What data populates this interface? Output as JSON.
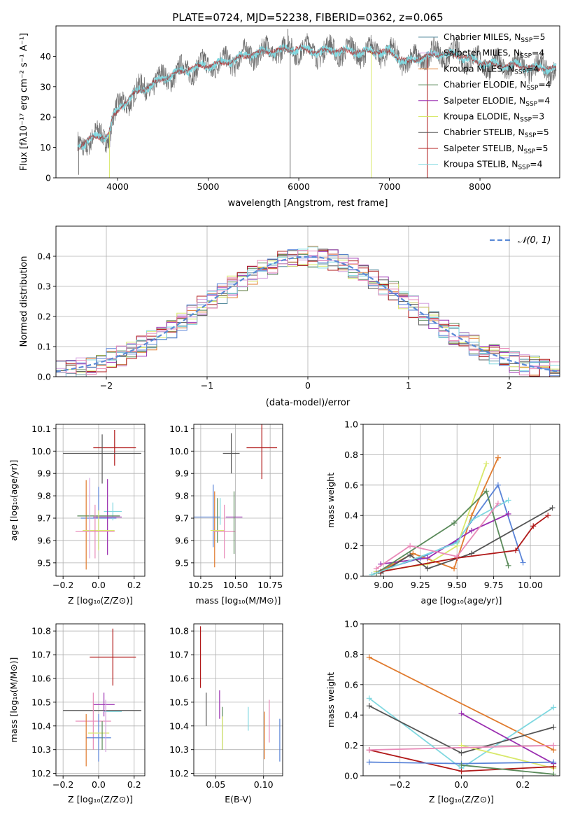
{
  "figure_title": "PLATE=0724, MJD=52238, FIBERID=0362, z=0.065",
  "colors": {
    "chabrier_miles": "#5b8fa0",
    "salpeter_miles": "#d6a3df",
    "kroupa_miles": "#e07b2e",
    "chabrier_elodie": "#5a8a5a",
    "salpeter_elodie": "#9a2eb0",
    "kroupa_elodie": "#d8e86a",
    "chabrier_stelib": "#555555",
    "salpeter_stelib": "#b01818",
    "kroupa_stelib": "#80d8e0",
    "blue_extra": "#5a84d8",
    "pink_extra": "#e88ab8",
    "normal_curve": "#5a8ad6",
    "grid": "#b0b0b0"
  },
  "chart_data": [
    {
      "id": "spectrum",
      "type": "line",
      "title": "PLATE=0724, MJD=52238, FIBERID=0362, z=0.065",
      "xlabel": "wavelength [Angstrom, rest frame]",
      "ylabel": "Flux [fλ10⁻¹⁷ erg cm⁻² s⁻¹ A⁻¹]",
      "xlim": [
        3320,
        8880
      ],
      "ylim": [
        0,
        50
      ],
      "xticks": [
        4000,
        5000,
        6000,
        7000,
        8000
      ],
      "yticks": [
        0,
        10,
        20,
        30,
        40
      ],
      "grid": false,
      "legend_position": "top-right",
      "continuum": [
        [
          3560,
          10
        ],
        [
          3700,
          13
        ],
        [
          3900,
          14
        ],
        [
          3950,
          20
        ],
        [
          4050,
          24
        ],
        [
          4200,
          28
        ],
        [
          4400,
          31
        ],
        [
          4600,
          34
        ],
        [
          4800,
          36
        ],
        [
          5000,
          37
        ],
        [
          5200,
          38
        ],
        [
          5400,
          40
        ],
        [
          5600,
          41.5
        ],
        [
          5800,
          42
        ],
        [
          6000,
          42.5
        ],
        [
          6200,
          41.5
        ],
        [
          6400,
          42
        ],
        [
          6600,
          41.5
        ],
        [
          6800,
          41.5
        ],
        [
          7000,
          41.5
        ],
        [
          7200,
          38
        ],
        [
          7400,
          40
        ],
        [
          7600,
          41
        ],
        [
          7800,
          40
        ],
        [
          8000,
          38
        ],
        [
          8200,
          37
        ],
        [
          8400,
          37
        ],
        [
          8600,
          36
        ],
        [
          8840,
          36
        ]
      ],
      "spikes": [
        {
          "x": 3570,
          "y": 1
        },
        {
          "x": 3910,
          "y": 0
        },
        {
          "x": 5880,
          "y": 49
        },
        {
          "x": 5905,
          "y": 0
        },
        {
          "x": 6800,
          "y": 0
        },
        {
          "x": 7420,
          "y": 0
        }
      ],
      "legend": [
        "Chabrier MILES, N_SSP=5",
        "Salpeter MILES, N_SSP=4",
        "Kroupa MILES, N_SSP=4",
        "Chabrier ELODIE, N_SSP=4",
        "Salpeter ELODIE, N_SSP=4",
        "Kroupa ELODIE, N_SSP=3",
        "Chabrier STELIB, N_SSP=5",
        "Salpeter STELIB, N_SSP=5",
        "Kroupa STELIB, N_SSP=4"
      ]
    },
    {
      "id": "residual-histogram",
      "type": "bar",
      "xlabel": "(data-model)/error",
      "ylabel": "Normed distribution",
      "xlim": [
        -2.5,
        2.5
      ],
      "ylim": [
        0,
        0.5
      ],
      "xticks": [
        -2,
        -1,
        0,
        1,
        2
      ],
      "yticks": [
        0.0,
        0.1,
        0.2,
        0.3,
        0.4
      ],
      "grid": true,
      "bin_width": 0.1,
      "legend_position": "top-right",
      "legend": [
        "𝒩(0, 1)"
      ],
      "normal": {
        "mean": 0,
        "sigma": 1
      }
    },
    {
      "id": "z-vs-age",
      "type": "scatter",
      "xlabel": "Z [log₁₀(Z/Z⊙)]",
      "ylabel": "age  [log₁₀(age/yr)]",
      "xlim": [
        -0.24,
        0.26
      ],
      "ylim": [
        9.44,
        10.12
      ],
      "xticks": [
        -0.2,
        0.0,
        0.2
      ],
      "yticks": [
        9.5,
        9.6,
        9.7,
        9.8,
        9.9,
        10.0,
        10.1
      ],
      "grid": true,
      "points": [
        {
          "color": "#b01818",
          "x": 0.09,
          "xerr": 0.12,
          "y": 10.015,
          "yerr": 0.08
        },
        {
          "color": "#555555",
          "x": 0.02,
          "xerr": 0.22,
          "y": 9.99,
          "yerr": 0.0
        },
        {
          "color": "#555555",
          "x": 0.02,
          "xerr": 0.0,
          "y": 9.965,
          "yerr": 0.11
        },
        {
          "color": "#5a84d8",
          "x": 0.0,
          "xerr": 0.1,
          "y": 9.7,
          "yerr": 0.14
        },
        {
          "color": "#80d8e0",
          "x": 0.08,
          "xerr": 0.05,
          "y": 9.73,
          "yerr": 0.04
        },
        {
          "color": "#9a2eb0",
          "x": 0.05,
          "xerr": 0.08,
          "y": 9.705,
          "yerr": 0.17
        },
        {
          "color": "#e07b2e",
          "x": -0.07,
          "xerr": 0.0,
          "y": 9.67,
          "yerr": 0.2
        },
        {
          "color": "#5a8a5a",
          "x": 0.0,
          "xerr": 0.12,
          "y": 9.71,
          "yerr": 0.0
        },
        {
          "color": "#d8e86a",
          "x": 0.0,
          "xerr": 0.09,
          "y": 9.645,
          "yerr": 0.09
        },
        {
          "color": "#e88ab8",
          "x": -0.02,
          "xerr": 0.11,
          "y": 9.64,
          "yerr": 0.12
        },
        {
          "color": "#d6a3df",
          "x": -0.05,
          "xerr": 0.0,
          "y": 9.7,
          "yerr": 0.18
        }
      ]
    },
    {
      "id": "mass-vs-age",
      "type": "scatter",
      "xlabel": "mass [log₁₀(M/M⊙)]",
      "ylabel": "",
      "xlim": [
        10.2,
        10.84
      ],
      "ylim": [
        9.44,
        10.12
      ],
      "xticks": [
        10.25,
        10.5,
        10.75
      ],
      "yticks": [
        9.5,
        9.6,
        9.7,
        9.8,
        9.9,
        10.0,
        10.1
      ],
      "grid": true,
      "points": [
        {
          "color": "#b01818",
          "x": 10.69,
          "xerr": 0.11,
          "y": 10.015,
          "yerr": 0.14
        },
        {
          "color": "#555555",
          "x": 10.47,
          "xerr": 0.06,
          "y": 9.99,
          "yerr": 0.0
        },
        {
          "color": "#555555",
          "x": 10.47,
          "xerr": 0.0,
          "y": 9.99,
          "yerr": 0.09
        },
        {
          "color": "#5a84d8",
          "x": 10.34,
          "xerr": 0.0,
          "y": 9.71,
          "yerr": 0.14
        },
        {
          "color": "#80d8e0",
          "x": 10.39,
          "xerr": 0.0,
          "y": 9.73,
          "yerr": 0.06
        },
        {
          "color": "#9a2eb0",
          "x": 10.49,
          "xerr": 0.06,
          "y": 9.705,
          "yerr": 0.0
        },
        {
          "color": "#e07b2e",
          "x": 10.35,
          "xerr": 0.0,
          "y": 9.65,
          "yerr": 0.17
        },
        {
          "color": "#5a8a5a",
          "x": 10.37,
          "xerr": 0.0,
          "y": 9.69,
          "yerr": 0.1
        },
        {
          "color": "#d8e86a",
          "x": 10.37,
          "xerr": 0.05,
          "y": 9.645,
          "yerr": 0.0
        },
        {
          "color": "#e88ab8",
          "x": 10.42,
          "xerr": 0.08,
          "y": 9.64,
          "yerr": 0.12
        },
        {
          "color": "#5a84d8",
          "x": 10.28,
          "xerr": 0.11,
          "y": 9.705,
          "yerr": 0.0
        },
        {
          "color": "#5a8a5a",
          "x": 10.49,
          "xerr": 0.0,
          "y": 9.68,
          "yerr": 0.14
        }
      ]
    },
    {
      "id": "age-vs-weight",
      "type": "line",
      "xlabel": "age  [log₁₀(age/yr)]",
      "ylabel": "mass weight",
      "xlim": [
        8.86,
        10.2
      ],
      "ylim": [
        0,
        1
      ],
      "xticks": [
        9.0,
        9.25,
        9.5,
        9.75,
        10.0
      ],
      "yticks": [
        0.0,
        0.2,
        0.4,
        0.6,
        0.8,
        1.0
      ],
      "grid": true,
      "series": [
        {
          "color": "#5a84d8",
          "points": [
            [
              8.95,
              0.03
            ],
            [
              9.25,
              0.12
            ],
            [
              9.5,
              0.23
            ],
            [
              9.78,
              0.6
            ],
            [
              9.95,
              0.09
            ]
          ]
        },
        {
          "color": "#e07b2e",
          "points": [
            [
              8.95,
              0.02
            ],
            [
              9.2,
              0.15
            ],
            [
              9.48,
              0.05
            ],
            [
              9.6,
              0.4
            ],
            [
              9.78,
              0.78
            ]
          ]
        },
        {
          "color": "#d8e86a",
          "points": [
            [
              8.95,
              0.03
            ],
            [
              9.3,
              0.08
            ],
            [
              9.5,
              0.2
            ],
            [
              9.7,
              0.74
            ]
          ]
        },
        {
          "color": "#9a2eb0",
          "points": [
            [
              8.98,
              0.08
            ],
            [
              9.3,
              0.12
            ],
            [
              9.6,
              0.3
            ],
            [
              9.85,
              0.41
            ]
          ]
        },
        {
          "color": "#5a8a5a",
          "points": [
            [
              8.95,
              0.02
            ],
            [
              9.48,
              0.35
            ],
            [
              9.7,
              0.56
            ],
            [
              9.85,
              0.07
            ]
          ]
        },
        {
          "color": "#555555",
          "points": [
            [
              8.98,
              0.02
            ],
            [
              9.18,
              0.14
            ],
            [
              9.3,
              0.05
            ],
            [
              9.6,
              0.15
            ],
            [
              10.15,
              0.45
            ]
          ]
        },
        {
          "color": "#b01818",
          "points": [
            [
              8.98,
              0.03
            ],
            [
              9.5,
              0.12
            ],
            [
              9.9,
              0.17
            ],
            [
              10.02,
              0.33
            ],
            [
              10.12,
              0.4
            ]
          ]
        },
        {
          "color": "#80d8e0",
          "points": [
            [
              8.92,
              0.01
            ],
            [
              9.5,
              0.22
            ],
            [
              9.6,
              0.37
            ],
            [
              9.85,
              0.5
            ]
          ]
        },
        {
          "color": "#e88ab8",
          "points": [
            [
              8.95,
              0.05
            ],
            [
              9.18,
              0.2
            ],
            [
              9.5,
              0.13
            ],
            [
              9.78,
              0.48
            ]
          ]
        }
      ]
    },
    {
      "id": "z-vs-mass",
      "type": "scatter",
      "xlabel": "Z [log₁₀(Z/Z⊙)]",
      "ylabel": "mass [log₁₀(M/M⊙)]",
      "xlim": [
        -0.24,
        0.26
      ],
      "ylim": [
        10.19,
        10.83
      ],
      "xticks": [
        -0.2,
        0.0,
        0.2
      ],
      "yticks": [
        10.2,
        10.3,
        10.4,
        10.5,
        10.6,
        10.7,
        10.8
      ],
      "grid": true,
      "points": [
        {
          "color": "#b01818",
          "x": 0.08,
          "xerr": 0.13,
          "y": 10.69,
          "yerr": 0.12
        },
        {
          "color": "#555555",
          "x": 0.02,
          "xerr": 0.22,
          "y": 10.465,
          "yerr": 0.0
        },
        {
          "color": "#9a2eb0",
          "x": 0.03,
          "xerr": 0.06,
          "y": 10.49,
          "yerr": 0.05
        },
        {
          "color": "#80d8e0",
          "x": 0.08,
          "xerr": 0.05,
          "y": 10.46,
          "yerr": 0.0
        },
        {
          "color": "#e88ab8",
          "x": -0.03,
          "xerr": 0.1,
          "y": 10.42,
          "yerr": 0.12
        },
        {
          "color": "#5a84d8",
          "x": 0.0,
          "xerr": 0.07,
          "y": 10.35,
          "yerr": 0.1
        },
        {
          "color": "#e07b2e",
          "x": -0.07,
          "xerr": 0.0,
          "y": 10.34,
          "yerr": 0.11
        },
        {
          "color": "#d8e86a",
          "x": 0.0,
          "xerr": 0.06,
          "y": 10.37,
          "yerr": 0.0
        },
        {
          "color": "#5a8a5a",
          "x": 0.02,
          "xerr": 0.0,
          "y": 10.36,
          "yerr": 0.06
        },
        {
          "color": "#d6a3df",
          "x": 0.04,
          "xerr": 0.0,
          "y": 10.4,
          "yerr": 0.11
        }
      ]
    },
    {
      "id": "ebv-vs-mass",
      "type": "scatter",
      "xlabel": "E(B-V)",
      "ylabel": "",
      "xlim": [
        0.027,
        0.12
      ],
      "ylim": [
        10.19,
        10.83
      ],
      "xticks": [
        0.05,
        0.1
      ],
      "yticks": [
        10.2,
        10.3,
        10.4,
        10.5,
        10.6,
        10.7,
        10.8
      ],
      "grid": true,
      "points": [
        {
          "color": "#b01818",
          "x": 0.034,
          "xerr": 0.0,
          "y": 10.69,
          "yerr": 0.13
        },
        {
          "color": "#555555",
          "x": 0.04,
          "xerr": 0.0,
          "y": 10.47,
          "yerr": 0.07
        },
        {
          "color": "#9a2eb0",
          "x": 0.054,
          "xerr": 0.0,
          "y": 10.49,
          "yerr": 0.06
        },
        {
          "color": "#5a8a5a",
          "x": 0.057,
          "xerr": 0.0,
          "y": 10.39,
          "yerr": 0.09
        },
        {
          "color": "#d8e86a",
          "x": 0.057,
          "xerr": 0.0,
          "y": 10.37,
          "yerr": 0.07
        },
        {
          "color": "#80d8e0",
          "x": 0.084,
          "xerr": 0.0,
          "y": 10.43,
          "yerr": 0.05
        },
        {
          "color": "#e07b2e",
          "x": 0.101,
          "xerr": 0.0,
          "y": 10.36,
          "yerr": 0.1
        },
        {
          "color": "#e88ab8",
          "x": 0.106,
          "xerr": 0.0,
          "y": 10.42,
          "yerr": 0.09
        },
        {
          "color": "#5a84d8",
          "x": 0.117,
          "xerr": 0.0,
          "y": 10.34,
          "yerr": 0.09
        }
      ]
    },
    {
      "id": "z-vs-weight",
      "type": "line",
      "xlabel": "Z [log₁₀(Z/Z⊙)]",
      "ylabel": "mass weight",
      "xlim": [
        -0.32,
        0.32
      ],
      "ylim": [
        0,
        1
      ],
      "xticks": [
        -0.2,
        0.0,
        0.2
      ],
      "yticks": [
        0.0,
        0.2,
        0.4,
        0.6,
        0.8,
        1.0
      ],
      "grid": true,
      "series": [
        {
          "color": "#e07b2e",
          "points": [
            [
              -0.3,
              0.78
            ],
            [
              0.3,
              0.17
            ]
          ]
        },
        {
          "color": "#80d8e0",
          "points": [
            [
              -0.3,
              0.51
            ],
            [
              0.0,
              0.05
            ],
            [
              0.3,
              0.45
            ]
          ]
        },
        {
          "color": "#555555",
          "points": [
            [
              -0.3,
              0.46
            ],
            [
              0.0,
              0.15
            ],
            [
              0.3,
              0.32
            ]
          ]
        },
        {
          "color": "#9a2eb0",
          "points": [
            [
              0.0,
              0.41
            ],
            [
              0.3,
              0.08
            ]
          ]
        },
        {
          "color": "#d8e86a",
          "points": [
            [
              0.0,
              0.2
            ],
            [
              0.3,
              0.05
            ]
          ]
        },
        {
          "color": "#b01818",
          "points": [
            [
              -0.3,
              0.17
            ],
            [
              0.0,
              0.03
            ],
            [
              0.3,
              0.06
            ]
          ]
        },
        {
          "color": "#e88ab8",
          "points": [
            [
              -0.3,
              0.17
            ],
            [
              0.3,
              0.2
            ]
          ]
        },
        {
          "color": "#5a84d8",
          "points": [
            [
              -0.3,
              0.09
            ],
            [
              0.0,
              0.08
            ],
            [
              0.3,
              0.09
            ]
          ]
        },
        {
          "color": "#5a8a5a",
          "points": [
            [
              0.0,
              0.07
            ],
            [
              0.3,
              0.01
            ]
          ]
        }
      ]
    }
  ]
}
